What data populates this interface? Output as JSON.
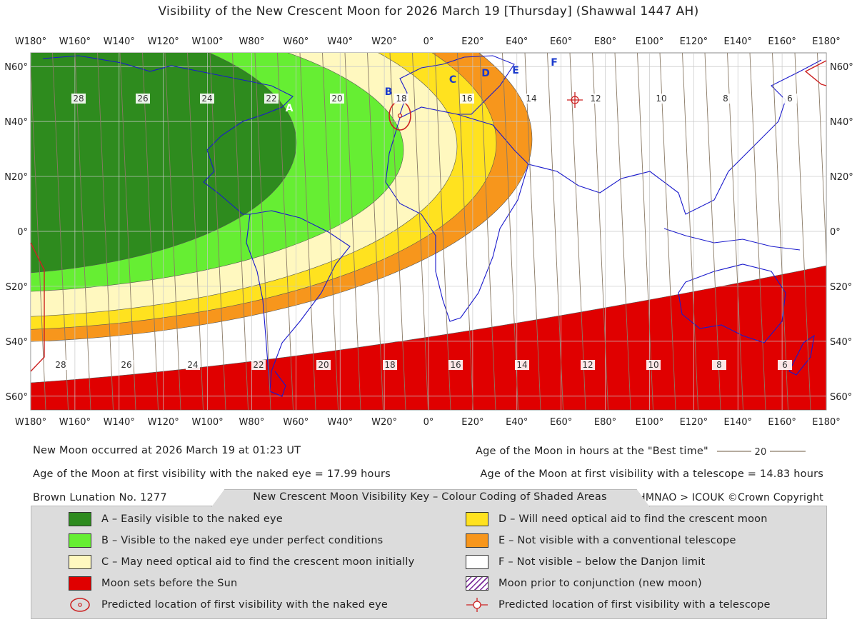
{
  "title": "Visibility of the New Crescent Moon for 2026 March 19 [Thursday] (Shawwal 1447 AH)",
  "map": {
    "lon_labels": [
      "W180°",
      "W160°",
      "W140°",
      "W120°",
      "W100°",
      "W80°",
      "W60°",
      "W40°",
      "W20°",
      "0°",
      "E20°",
      "E40°",
      "E60°",
      "E80°",
      "E100°",
      "E120°",
      "E140°",
      "E160°",
      "E180°"
    ],
    "lat_labels": [
      "N60°",
      "N40°",
      "N20°",
      "0°",
      "S20°",
      "S40°",
      "S60°"
    ],
    "age_labels_top": [
      "28",
      "26",
      "24",
      "22",
      "20",
      "18",
      "16",
      "14",
      "12",
      "10",
      "8",
      "6"
    ],
    "age_labels_bottom": [
      "28",
      "26",
      "24",
      "22",
      "20",
      "18",
      "16",
      "14",
      "12",
      "10",
      "8",
      "6"
    ],
    "zone_labels": [
      "A",
      "B",
      "C",
      "D",
      "E",
      "F"
    ],
    "colors": {
      "zone_a": "#2e8b1e",
      "zone_b": "#66ee33",
      "zone_c": "#fff8bf",
      "zone_d": "#ffe21f",
      "zone_e": "#f7961c",
      "zone_f": "#ffffff",
      "moon_sets": "#e00000",
      "coast": "#1a1acc",
      "border": "#b88a66",
      "age_line": "#8a7a66",
      "grid": "#c8c8c8"
    }
  },
  "info": {
    "new_moon": "New Moon occurred at 2026 March 19 at 01:23 UT",
    "best_time_legend": "Age of the Moon in hours at the \"Best time\"",
    "best_time_sample": "20",
    "naked_eye_age": "Age of the Moon at first visibility with the naked eye = 17.99 hours",
    "telescope_age": "Age of the Moon at first visibility with a telescope = 14.83 hours",
    "lunation": "Brown Lunation No. 1277",
    "key_title": "New Crescent Moon Visibility Key – Colour Coding of Shaded Areas",
    "credit": "HMNAO > ICOUK ©Crown Copyright"
  },
  "key": {
    "a": "A – Easily visible to the naked eye",
    "b": "B – Visible to the naked eye under perfect conditions",
    "c": "C – May need optical aid to find the crescent moon initially",
    "moon_sets": "Moon sets before the Sun",
    "naked_eye_location": "Predicted location of first visibility with the naked eye",
    "d": "D – Will need optical aid to find the crescent moon",
    "e": "E – Not visible with a conventional telescope",
    "f": "F – Not visible – below the Danjon limit",
    "prior": "Moon prior to conjunction (new moon)",
    "telescope_location": "Predicted location of first visibility with a telescope"
  }
}
